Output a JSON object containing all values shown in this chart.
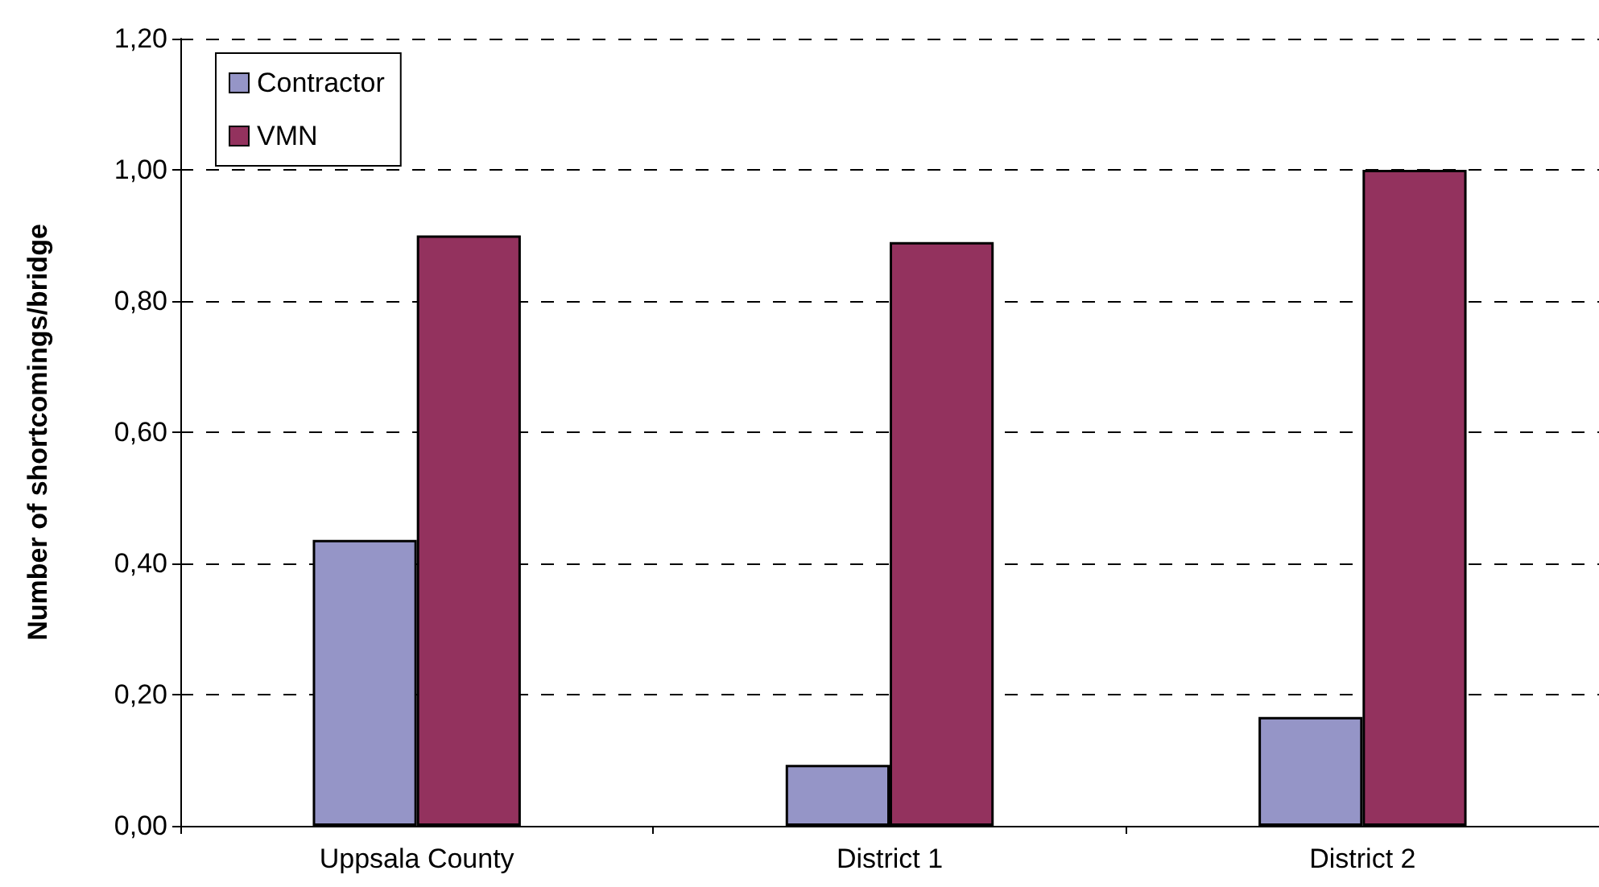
{
  "chart_data": {
    "type": "bar",
    "ylabel": "Number of shortcomings/bridge",
    "categories": [
      "Uppsala County",
      "District 1",
      "District 2"
    ],
    "series": [
      {
        "name": "Contractor",
        "color": "#9595c7",
        "values": [
          0.436,
          0.093,
          0.166
        ]
      },
      {
        "name": "VMN",
        "color": "#93325e",
        "values": [
          0.9,
          0.89,
          1.0
        ]
      }
    ],
    "ylim": [
      0,
      1.2
    ],
    "yticks": [
      {
        "value": 0,
        "label": "0,00"
      },
      {
        "value": 0.2,
        "label": "0,20"
      },
      {
        "value": 0.4,
        "label": "0,40"
      },
      {
        "value": 0.6,
        "label": "0,60"
      },
      {
        "value": 0.8,
        "label": "0,80"
      },
      {
        "value": 1.0,
        "label": "1,00"
      },
      {
        "value": 1.2,
        "label": "1,20"
      }
    ],
    "grid": "y",
    "legend": "top left"
  }
}
